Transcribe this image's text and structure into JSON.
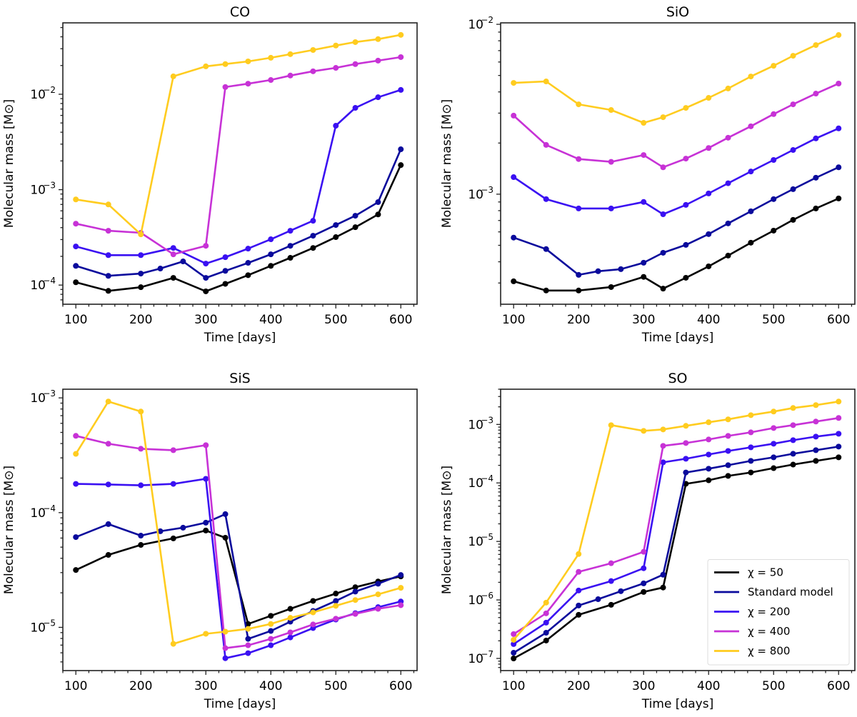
{
  "figure": {
    "legend_entries": [
      {
        "label": "χ = 50",
        "color": "#000000"
      },
      {
        "label": "Standard model",
        "color": "#0a0a9c"
      },
      {
        "label": "χ = 200",
        "color": "#3a10f2"
      },
      {
        "label": "χ = 400",
        "color": "#c732d6"
      },
      {
        "label": "χ = 800",
        "color": "#ffcc1f"
      }
    ]
  },
  "chart_data": [
    {
      "type": "line",
      "title": "CO",
      "xlabel": "Time [days]",
      "ylabel": "Molecular mass [M⊙]",
      "yscale": "log",
      "xlim": [
        80,
        625
      ],
      "ylim": [
        6.3e-05,
        0.056
      ],
      "xticks": [
        100,
        200,
        300,
        400,
        500,
        600
      ],
      "yticks": [
        {
          "value": 0.0001,
          "label": "10",
          "exp": "−4"
        },
        {
          "value": 0.001,
          "label": "10",
          "exp": "−3"
        },
        {
          "value": 0.01,
          "label": "10",
          "exp": "−2"
        }
      ],
      "legend": null,
      "series": [
        {
          "name": "χ = 50",
          "color": "#000000",
          "x": [
            100,
            150,
            200,
            250,
            300,
            330,
            365,
            400,
            430,
            465,
            500,
            530,
            565,
            600
          ],
          "y": [
            0.000107,
            8.7e-05,
            9.5e-05,
            0.000119,
            8.6e-05,
            0.000103,
            0.000127,
            0.000159,
            0.000193,
            0.000245,
            0.000318,
            0.000404,
            0.00055,
            0.00181
          ]
        },
        {
          "name": "Standard model",
          "color": "#0a0a9c",
          "x": [
            100,
            150,
            200,
            230,
            265,
            300,
            330,
            365,
            400,
            430,
            465,
            500,
            530,
            565,
            600
          ],
          "y": [
            0.000159,
            0.000125,
            0.000132,
            0.000149,
            0.000177,
            0.000119,
            0.000141,
            0.000171,
            0.00021,
            0.000258,
            0.000329,
            0.000426,
            0.000533,
            0.00074,
            0.00265
          ]
        },
        {
          "name": "χ = 200",
          "color": "#3a10f2",
          "x": [
            100,
            150,
            200,
            250,
            300,
            330,
            365,
            400,
            430,
            465,
            500,
            530,
            565,
            600
          ],
          "y": [
            0.000254,
            0.000206,
            0.000206,
            0.000245,
            0.000168,
            0.000196,
            0.000241,
            0.000302,
            0.000371,
            0.000472,
            0.00468,
            0.0072,
            0.0093,
            0.0111
          ]
        },
        {
          "name": "χ = 400",
          "color": "#c732d6",
          "x": [
            100,
            150,
            200,
            250,
            300,
            330,
            365,
            400,
            430,
            465,
            500,
            530,
            565,
            600
          ],
          "y": [
            0.00044,
            0.000371,
            0.000353,
            0.00021,
            0.000258,
            0.0119,
            0.0129,
            0.0141,
            0.0157,
            0.0174,
            0.0189,
            0.0207,
            0.0225,
            0.0245
          ]
        },
        {
          "name": "χ = 800",
          "color": "#ffcc1f",
          "x": [
            100,
            150,
            200,
            250,
            300,
            330,
            365,
            400,
            430,
            465,
            500,
            530,
            565,
            600
          ],
          "y": [
            0.00079,
            0.0007,
            0.00034,
            0.0154,
            0.0196,
            0.0207,
            0.0221,
            0.0241,
            0.0263,
            0.0291,
            0.0324,
            0.0352,
            0.0378,
            0.0419
          ]
        }
      ]
    },
    {
      "type": "line",
      "title": "SiO",
      "xlabel": "Time [days]",
      "ylabel": "Molecular mass [M⊙]",
      "yscale": "log",
      "xlim": [
        80,
        625
      ],
      "ylim": [
        0.000225,
        0.0102
      ],
      "xticks": [
        100,
        200,
        300,
        400,
        500,
        600
      ],
      "yticks": [
        {
          "value": 0.001,
          "label": "10",
          "exp": "−3"
        },
        {
          "value": 0.01,
          "label": "10",
          "exp": "−2"
        }
      ],
      "legend": null,
      "series": [
        {
          "name": "χ = 50",
          "color": "#000000",
          "x": [
            100,
            150,
            200,
            250,
            300,
            330,
            365,
            400,
            430,
            465,
            500,
            530,
            565,
            600
          ],
          "y": [
            0.000307,
            0.000271,
            0.000271,
            0.000284,
            0.000326,
            0.000278,
            0.000322,
            0.000376,
            0.000435,
            0.000518,
            0.00061,
            0.000706,
            0.000824,
            0.000944
          ]
        },
        {
          "name": "Standard model",
          "color": "#0a0a9c",
          "x": [
            100,
            150,
            200,
            230,
            265,
            300,
            330,
            365,
            400,
            430,
            465,
            500,
            530,
            565,
            600
          ],
          "y": [
            0.000555,
            0.000475,
            0.000335,
            0.000352,
            0.000362,
            0.000395,
            0.000452,
            0.000503,
            0.000582,
            0.000673,
            0.000793,
            0.000935,
            0.00107,
            0.00125,
            0.00144
          ]
        },
        {
          "name": "χ = 200",
          "color": "#3a10f2",
          "x": [
            100,
            150,
            200,
            250,
            300,
            330,
            365,
            400,
            430,
            465,
            500,
            530,
            565,
            600
          ],
          "y": [
            0.00126,
            0.000935,
            0.000824,
            0.000824,
            0.0009,
            0.000762,
            0.000865,
            0.00101,
            0.00116,
            0.00136,
            0.00159,
            0.00182,
            0.00213,
            0.00244
          ]
        },
        {
          "name": "χ = 400",
          "color": "#c732d6",
          "x": [
            100,
            150,
            200,
            250,
            300,
            330,
            365,
            400,
            430,
            465,
            500,
            530,
            565,
            600
          ],
          "y": [
            0.0029,
            0.00195,
            0.00161,
            0.00155,
            0.0017,
            0.00144,
            0.00162,
            0.00187,
            0.00215,
            0.00251,
            0.00296,
            0.00338,
            0.00391,
            0.00448
          ]
        },
        {
          "name": "χ = 800",
          "color": "#ffcc1f",
          "x": [
            100,
            150,
            200,
            250,
            300,
            330,
            365,
            400,
            430,
            465,
            500,
            530,
            565,
            600
          ],
          "y": [
            0.00452,
            0.00461,
            0.00338,
            0.00313,
            0.00263,
            0.00284,
            0.00322,
            0.00369,
            0.00419,
            0.00493,
            0.0057,
            0.00653,
            0.00755,
            0.00865
          ]
        }
      ]
    },
    {
      "type": "line",
      "title": "SiS",
      "xlabel": "Time [days]",
      "ylabel": "Molecular mass [M⊙]",
      "yscale": "log",
      "xlim": [
        80,
        625
      ],
      "ylim": [
        4.2e-06,
        0.00119
      ],
      "xticks": [
        100,
        200,
        300,
        400,
        500,
        600
      ],
      "yticks": [
        {
          "value": 1e-05,
          "label": "10",
          "exp": "−5"
        },
        {
          "value": 0.0001,
          "label": "10",
          "exp": "−4"
        },
        {
          "value": 0.001,
          "label": "10",
          "exp": "−3"
        }
      ],
      "legend": null,
      "series": [
        {
          "name": "χ = 50",
          "color": "#000000",
          "x": [
            100,
            150,
            200,
            250,
            300,
            330,
            365,
            400,
            430,
            465,
            500,
            530,
            565,
            600
          ],
          "y": [
            3.16e-05,
            4.28e-05,
            5.23e-05,
            5.96e-05,
            6.98e-05,
            6.04e-05,
            1.07e-05,
            1.26e-05,
            1.45e-05,
            1.7e-05,
            1.97e-05,
            2.24e-05,
            2.51e-05,
            2.78e-05
          ]
        },
        {
          "name": "Standard model",
          "color": "#0a0a9c",
          "x": [
            100,
            150,
            200,
            230,
            265,
            300,
            330,
            365,
            400,
            430,
            465,
            500,
            530,
            565,
            600
          ],
          "y": [
            6.12e-05,
            7.94e-05,
            6.3e-05,
            6.88e-05,
            7.39e-05,
            8.17e-05,
            9.7e-05,
            7.94e-06,
            9.3e-06,
            1.12e-05,
            1.39e-05,
            1.7e-05,
            2.05e-05,
            2.4e-05,
            2.86e-05
          ]
        },
        {
          "name": "χ = 200",
          "color": "#3a10f2",
          "x": [
            100,
            150,
            200,
            250,
            300,
            330,
            365,
            400,
            430,
            465,
            500,
            530,
            565,
            600
          ],
          "y": [
            0.000178,
            0.000176,
            0.000173,
            0.000178,
            0.000197,
            5.38e-06,
            5.96e-06,
            6.98e-06,
            8.17e-06,
            9.86e-06,
            1.17e-05,
            1.33e-05,
            1.5e-05,
            1.68e-05
          ]
        },
        {
          "name": "χ = 400",
          "color": "#c732d6",
          "x": [
            100,
            150,
            200,
            250,
            300,
            330,
            365,
            400,
            430,
            465,
            500,
            530,
            565,
            600
          ],
          "y": [
            0.000467,
            0.000398,
            0.00036,
            0.00035,
            0.000387,
            6.59e-06,
            6.98e-06,
            7.94e-06,
            9.04e-06,
            1.06e-05,
            1.19e-05,
            1.31e-05,
            1.45e-05,
            1.56e-05
          ]
        },
        {
          "name": "χ = 800",
          "color": "#ffcc1f",
          "x": [
            100,
            150,
            200,
            250,
            300,
            330,
            365,
            400,
            430,
            465,
            500,
            530,
            565,
            600
          ],
          "y": [
            0.000325,
            0.00093,
            0.00076,
            7.18e-06,
            8.79e-06,
            9.17e-06,
            9.7e-06,
            1.07e-05,
            1.21e-05,
            1.35e-05,
            1.54e-05,
            1.73e-05,
            1.94e-05,
            2.21e-05
          ]
        }
      ]
    },
    {
      "type": "line",
      "title": "SO",
      "xlabel": "Time [days]",
      "ylabel": "Molecular mass [M⊙]",
      "yscale": "log",
      "xlim": [
        80,
        625
      ],
      "ylim": [
        6.2e-08,
        0.004
      ],
      "xticks": [
        100,
        200,
        300,
        400,
        500,
        600
      ],
      "yticks": [
        {
          "value": 1e-07,
          "label": "10",
          "exp": "−7"
        },
        {
          "value": 1e-06,
          "label": "10",
          "exp": "−6"
        },
        {
          "value": 1e-05,
          "label": "10",
          "exp": "−5"
        },
        {
          "value": 0.0001,
          "label": "10",
          "exp": "−4"
        },
        {
          "value": 0.001,
          "label": "10",
          "exp": "−3"
        }
      ],
      "legend": "lower-right",
      "series": [
        {
          "name": "χ = 50",
          "color": "#000000",
          "x": [
            100,
            150,
            200,
            250,
            300,
            330,
            365,
            400,
            430,
            465,
            500,
            530,
            565,
            600
          ],
          "y": [
            1e-07,
            2.02e-07,
            5.57e-07,
            8.26e-07,
            1.37e-06,
            1.63e-06,
            9.66e-05,
            0.000111,
            0.000132,
            0.000151,
            0.000179,
            0.000206,
            0.000238,
            0.000274
          ]
        },
        {
          "name": "Standard model",
          "color": "#0a0a9c",
          "x": [
            100,
            150,
            200,
            230,
            265,
            300,
            330,
            365,
            400,
            430,
            465,
            500,
            530,
            565,
            600
          ],
          "y": [
            1.25e-07,
            2.75e-07,
            8.03e-07,
            1.03e-06,
            1.41e-06,
            1.92e-06,
            2.7e-06,
            0.000151,
            0.000175,
            0.000201,
            0.000238,
            0.000274,
            0.000315,
            0.000363,
            0.000418
          ]
        },
        {
          "name": "χ = 200",
          "color": "#3a10f2",
          "x": [
            100,
            150,
            200,
            250,
            300,
            330,
            365,
            400,
            430,
            465,
            500,
            530,
            565,
            600
          ],
          "y": [
            1.76e-07,
            4.09e-07,
            1.45e-06,
            2.1e-06,
            3.48e-06,
            0.000225,
            0.000259,
            0.000306,
            0.000352,
            0.000406,
            0.000468,
            0.000538,
            0.000619,
            0.000693
          ]
        },
        {
          "name": "χ = 400",
          "color": "#c732d6",
          "x": [
            100,
            150,
            200,
            250,
            300,
            330,
            365,
            400,
            430,
            465,
            500,
            530,
            565,
            600
          ],
          "y": [
            2.61e-07,
            5.9e-07,
            3.02e-06,
            4.24e-06,
            6.65e-06,
            0.00043,
            0.000481,
            0.000553,
            0.000637,
            0.000732,
            0.000868,
            0.000972,
            0.00112,
            0.00129
          ]
        },
        {
          "name": "χ = 800",
          "color": "#ffcc1f",
          "x": [
            100,
            150,
            200,
            250,
            300,
            330,
            365,
            400,
            430,
            465,
            500,
            530,
            565,
            600
          ],
          "y": [
            2.08e-07,
            9e-07,
            6.1e-06,
            0.000972,
            0.000776,
            0.000821,
            0.000946,
            0.00109,
            0.00122,
            0.00144,
            0.00166,
            0.00191,
            0.00214,
            0.00246
          ]
        }
      ]
    }
  ]
}
